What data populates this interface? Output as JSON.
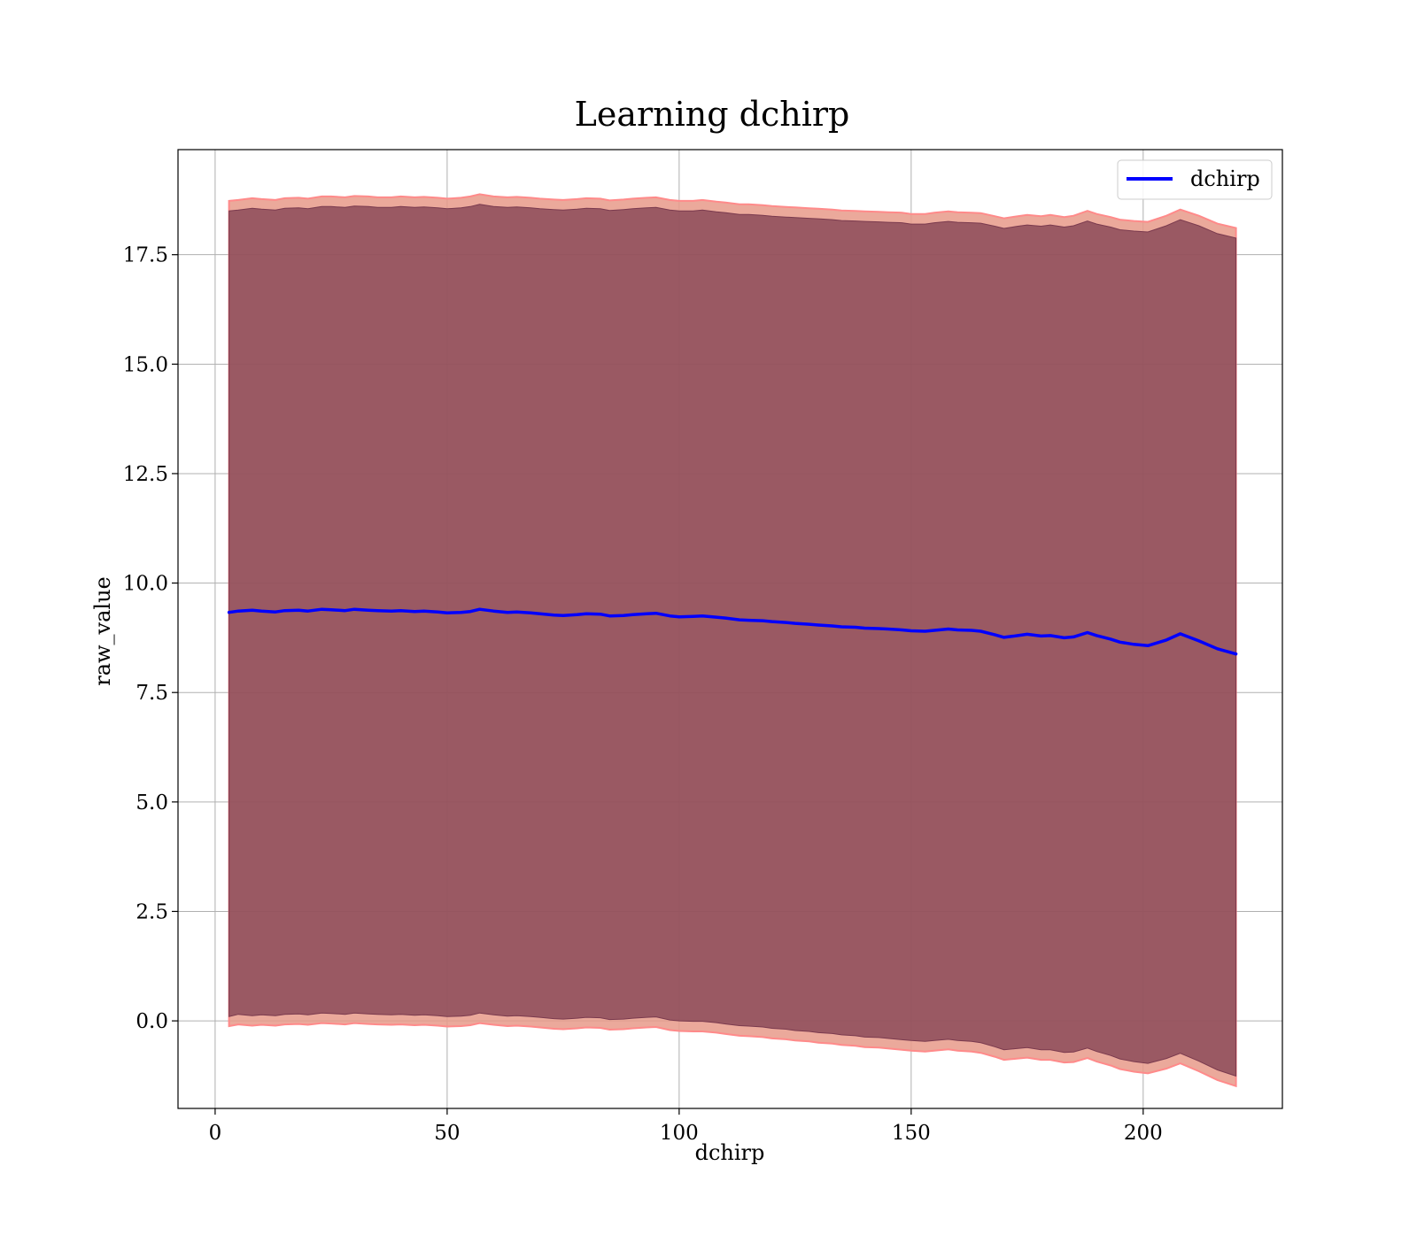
{
  "chart_data": {
    "type": "line",
    "title": "Learning dchirp",
    "xlabel": "dchirp",
    "ylabel": "raw_value",
    "xlim": [
      -8,
      230
    ],
    "ylim": [
      -2.0,
      19.9
    ],
    "xticks": [
      0,
      50,
      100,
      150,
      200
    ],
    "xtick_labels": [
      "0",
      "50",
      "100",
      "150",
      "200"
    ],
    "yticks": [
      0.0,
      2.5,
      5.0,
      7.5,
      10.0,
      12.5,
      15.0,
      17.5
    ],
    "ytick_labels": [
      "0.0",
      "2.5",
      "5.0",
      "7.5",
      "10.0",
      "12.5",
      "15.0",
      "17.5"
    ],
    "grid": true,
    "legend_position": "top-right",
    "series": [
      {
        "name": "dchirp",
        "color": "#0000ff",
        "x": [
          3,
          5,
          8,
          10,
          13,
          15,
          18,
          20,
          23,
          25,
          28,
          30,
          33,
          35,
          38,
          40,
          43,
          45,
          48,
          50,
          53,
          55,
          57,
          60,
          63,
          65,
          68,
          70,
          73,
          75,
          78,
          80,
          83,
          85,
          88,
          90,
          93,
          95,
          98,
          100,
          103,
          105,
          108,
          110,
          113,
          115,
          118,
          120,
          123,
          125,
          128,
          130,
          133,
          135,
          138,
          140,
          143,
          145,
          148,
          150,
          153,
          155,
          158,
          160,
          163,
          165,
          168,
          170,
          173,
          175,
          178,
          180,
          183,
          185,
          188,
          190,
          193,
          195,
          198,
          201,
          205,
          208,
          212,
          216,
          220
        ],
        "y": [
          9.33,
          9.36,
          9.38,
          9.36,
          9.34,
          9.37,
          9.38,
          9.36,
          9.4,
          9.39,
          9.37,
          9.4,
          9.38,
          9.37,
          9.36,
          9.37,
          9.35,
          9.36,
          9.34,
          9.32,
          9.33,
          9.35,
          9.4,
          9.36,
          9.33,
          9.34,
          9.32,
          9.3,
          9.27,
          9.26,
          9.28,
          9.3,
          9.29,
          9.25,
          9.26,
          9.28,
          9.3,
          9.31,
          9.25,
          9.23,
          9.24,
          9.25,
          9.22,
          9.2,
          9.16,
          9.15,
          9.14,
          9.12,
          9.1,
          9.08,
          9.06,
          9.04,
          9.02,
          9.0,
          8.99,
          8.97,
          8.96,
          8.95,
          8.93,
          8.91,
          8.9,
          8.92,
          8.95,
          8.93,
          8.92,
          8.9,
          8.82,
          8.76,
          8.8,
          8.83,
          8.79,
          8.8,
          8.75,
          8.77,
          8.87,
          8.8,
          8.72,
          8.65,
          8.6,
          8.57,
          8.7,
          8.84,
          8.68,
          8.5,
          8.38
        ],
        "band_inner": {
          "color": "#7a3a4e",
          "lower": [
            0.1,
            0.15,
            0.12,
            0.14,
            0.12,
            0.15,
            0.16,
            0.14,
            0.18,
            0.17,
            0.15,
            0.18,
            0.16,
            0.15,
            0.14,
            0.15,
            0.13,
            0.14,
            0.12,
            0.1,
            0.11,
            0.13,
            0.18,
            0.14,
            0.11,
            0.12,
            0.1,
            0.08,
            0.05,
            0.04,
            0.06,
            0.08,
            0.07,
            0.03,
            0.04,
            0.06,
            0.08,
            0.09,
            0.02,
            0.0,
            -0.01,
            -0.01,
            -0.04,
            -0.07,
            -0.11,
            -0.12,
            -0.14,
            -0.17,
            -0.19,
            -0.22,
            -0.24,
            -0.27,
            -0.29,
            -0.32,
            -0.34,
            -0.37,
            -0.38,
            -0.4,
            -0.43,
            -0.45,
            -0.47,
            -0.45,
            -0.42,
            -0.45,
            -0.47,
            -0.5,
            -0.59,
            -0.66,
            -0.63,
            -0.61,
            -0.66,
            -0.66,
            -0.72,
            -0.71,
            -0.62,
            -0.7,
            -0.79,
            -0.87,
            -0.93,
            -0.97,
            -0.86,
            -0.74,
            -0.92,
            -1.12,
            -1.26
          ],
          "upper": [
            18.5,
            18.52,
            18.56,
            18.54,
            18.52,
            18.56,
            18.57,
            18.55,
            18.6,
            18.6,
            18.58,
            18.61,
            18.6,
            18.58,
            18.58,
            18.6,
            18.58,
            18.59,
            18.57,
            18.55,
            18.57,
            18.6,
            18.65,
            18.6,
            18.58,
            18.59,
            18.57,
            18.55,
            18.53,
            18.52,
            18.54,
            18.56,
            18.55,
            18.51,
            18.53,
            18.55,
            18.57,
            18.58,
            18.52,
            18.5,
            18.5,
            18.52,
            18.48,
            18.46,
            18.42,
            18.42,
            18.4,
            18.38,
            18.36,
            18.35,
            18.33,
            18.32,
            18.3,
            18.28,
            18.27,
            18.26,
            18.25,
            18.24,
            18.23,
            18.2,
            18.2,
            18.23,
            18.26,
            18.24,
            18.23,
            18.22,
            18.15,
            18.1,
            18.15,
            18.18,
            18.15,
            18.18,
            18.13,
            18.16,
            18.27,
            18.2,
            18.13,
            18.07,
            18.04,
            18.02,
            18.16,
            18.3,
            18.16,
            17.98,
            17.88
          ]
        },
        "band_outer": {
          "color": "#e89a8a",
          "lower": [
            -0.12,
            -0.08,
            -0.11,
            -0.09,
            -0.11,
            -0.08,
            -0.07,
            -0.09,
            -0.05,
            -0.06,
            -0.08,
            -0.05,
            -0.07,
            -0.08,
            -0.09,
            -0.08,
            -0.1,
            -0.09,
            -0.11,
            -0.13,
            -0.12,
            -0.1,
            -0.05,
            -0.09,
            -0.12,
            -0.11,
            -0.13,
            -0.15,
            -0.18,
            -0.19,
            -0.17,
            -0.15,
            -0.16,
            -0.2,
            -0.19,
            -0.17,
            -0.15,
            -0.14,
            -0.21,
            -0.23,
            -0.24,
            -0.24,
            -0.27,
            -0.3,
            -0.34,
            -0.35,
            -0.37,
            -0.4,
            -0.42,
            -0.45,
            -0.47,
            -0.5,
            -0.52,
            -0.55,
            -0.57,
            -0.6,
            -0.61,
            -0.63,
            -0.66,
            -0.68,
            -0.7,
            -0.68,
            -0.65,
            -0.68,
            -0.7,
            -0.73,
            -0.82,
            -0.89,
            -0.86,
            -0.84,
            -0.89,
            -0.89,
            -0.95,
            -0.94,
            -0.85,
            -0.93,
            -1.02,
            -1.1,
            -1.16,
            -1.2,
            -1.09,
            -0.97,
            -1.15,
            -1.35,
            -1.49
          ],
          "upper": [
            18.73,
            18.75,
            18.79,
            18.77,
            18.75,
            18.79,
            18.8,
            18.78,
            18.83,
            18.83,
            18.81,
            18.84,
            18.83,
            18.81,
            18.81,
            18.83,
            18.81,
            18.82,
            18.8,
            18.78,
            18.8,
            18.83,
            18.88,
            18.83,
            18.81,
            18.82,
            18.8,
            18.78,
            18.76,
            18.75,
            18.77,
            18.79,
            18.78,
            18.74,
            18.76,
            18.78,
            18.8,
            18.81,
            18.75,
            18.73,
            18.73,
            18.75,
            18.71,
            18.69,
            18.65,
            18.65,
            18.63,
            18.61,
            18.59,
            18.58,
            18.56,
            18.55,
            18.53,
            18.51,
            18.5,
            18.49,
            18.48,
            18.47,
            18.46,
            18.43,
            18.43,
            18.46,
            18.49,
            18.47,
            18.46,
            18.45,
            18.38,
            18.33,
            18.38,
            18.41,
            18.38,
            18.41,
            18.36,
            18.39,
            18.5,
            18.43,
            18.36,
            18.3,
            18.27,
            18.25,
            18.39,
            18.53,
            18.39,
            18.21,
            18.11
          ]
        }
      }
    ]
  }
}
